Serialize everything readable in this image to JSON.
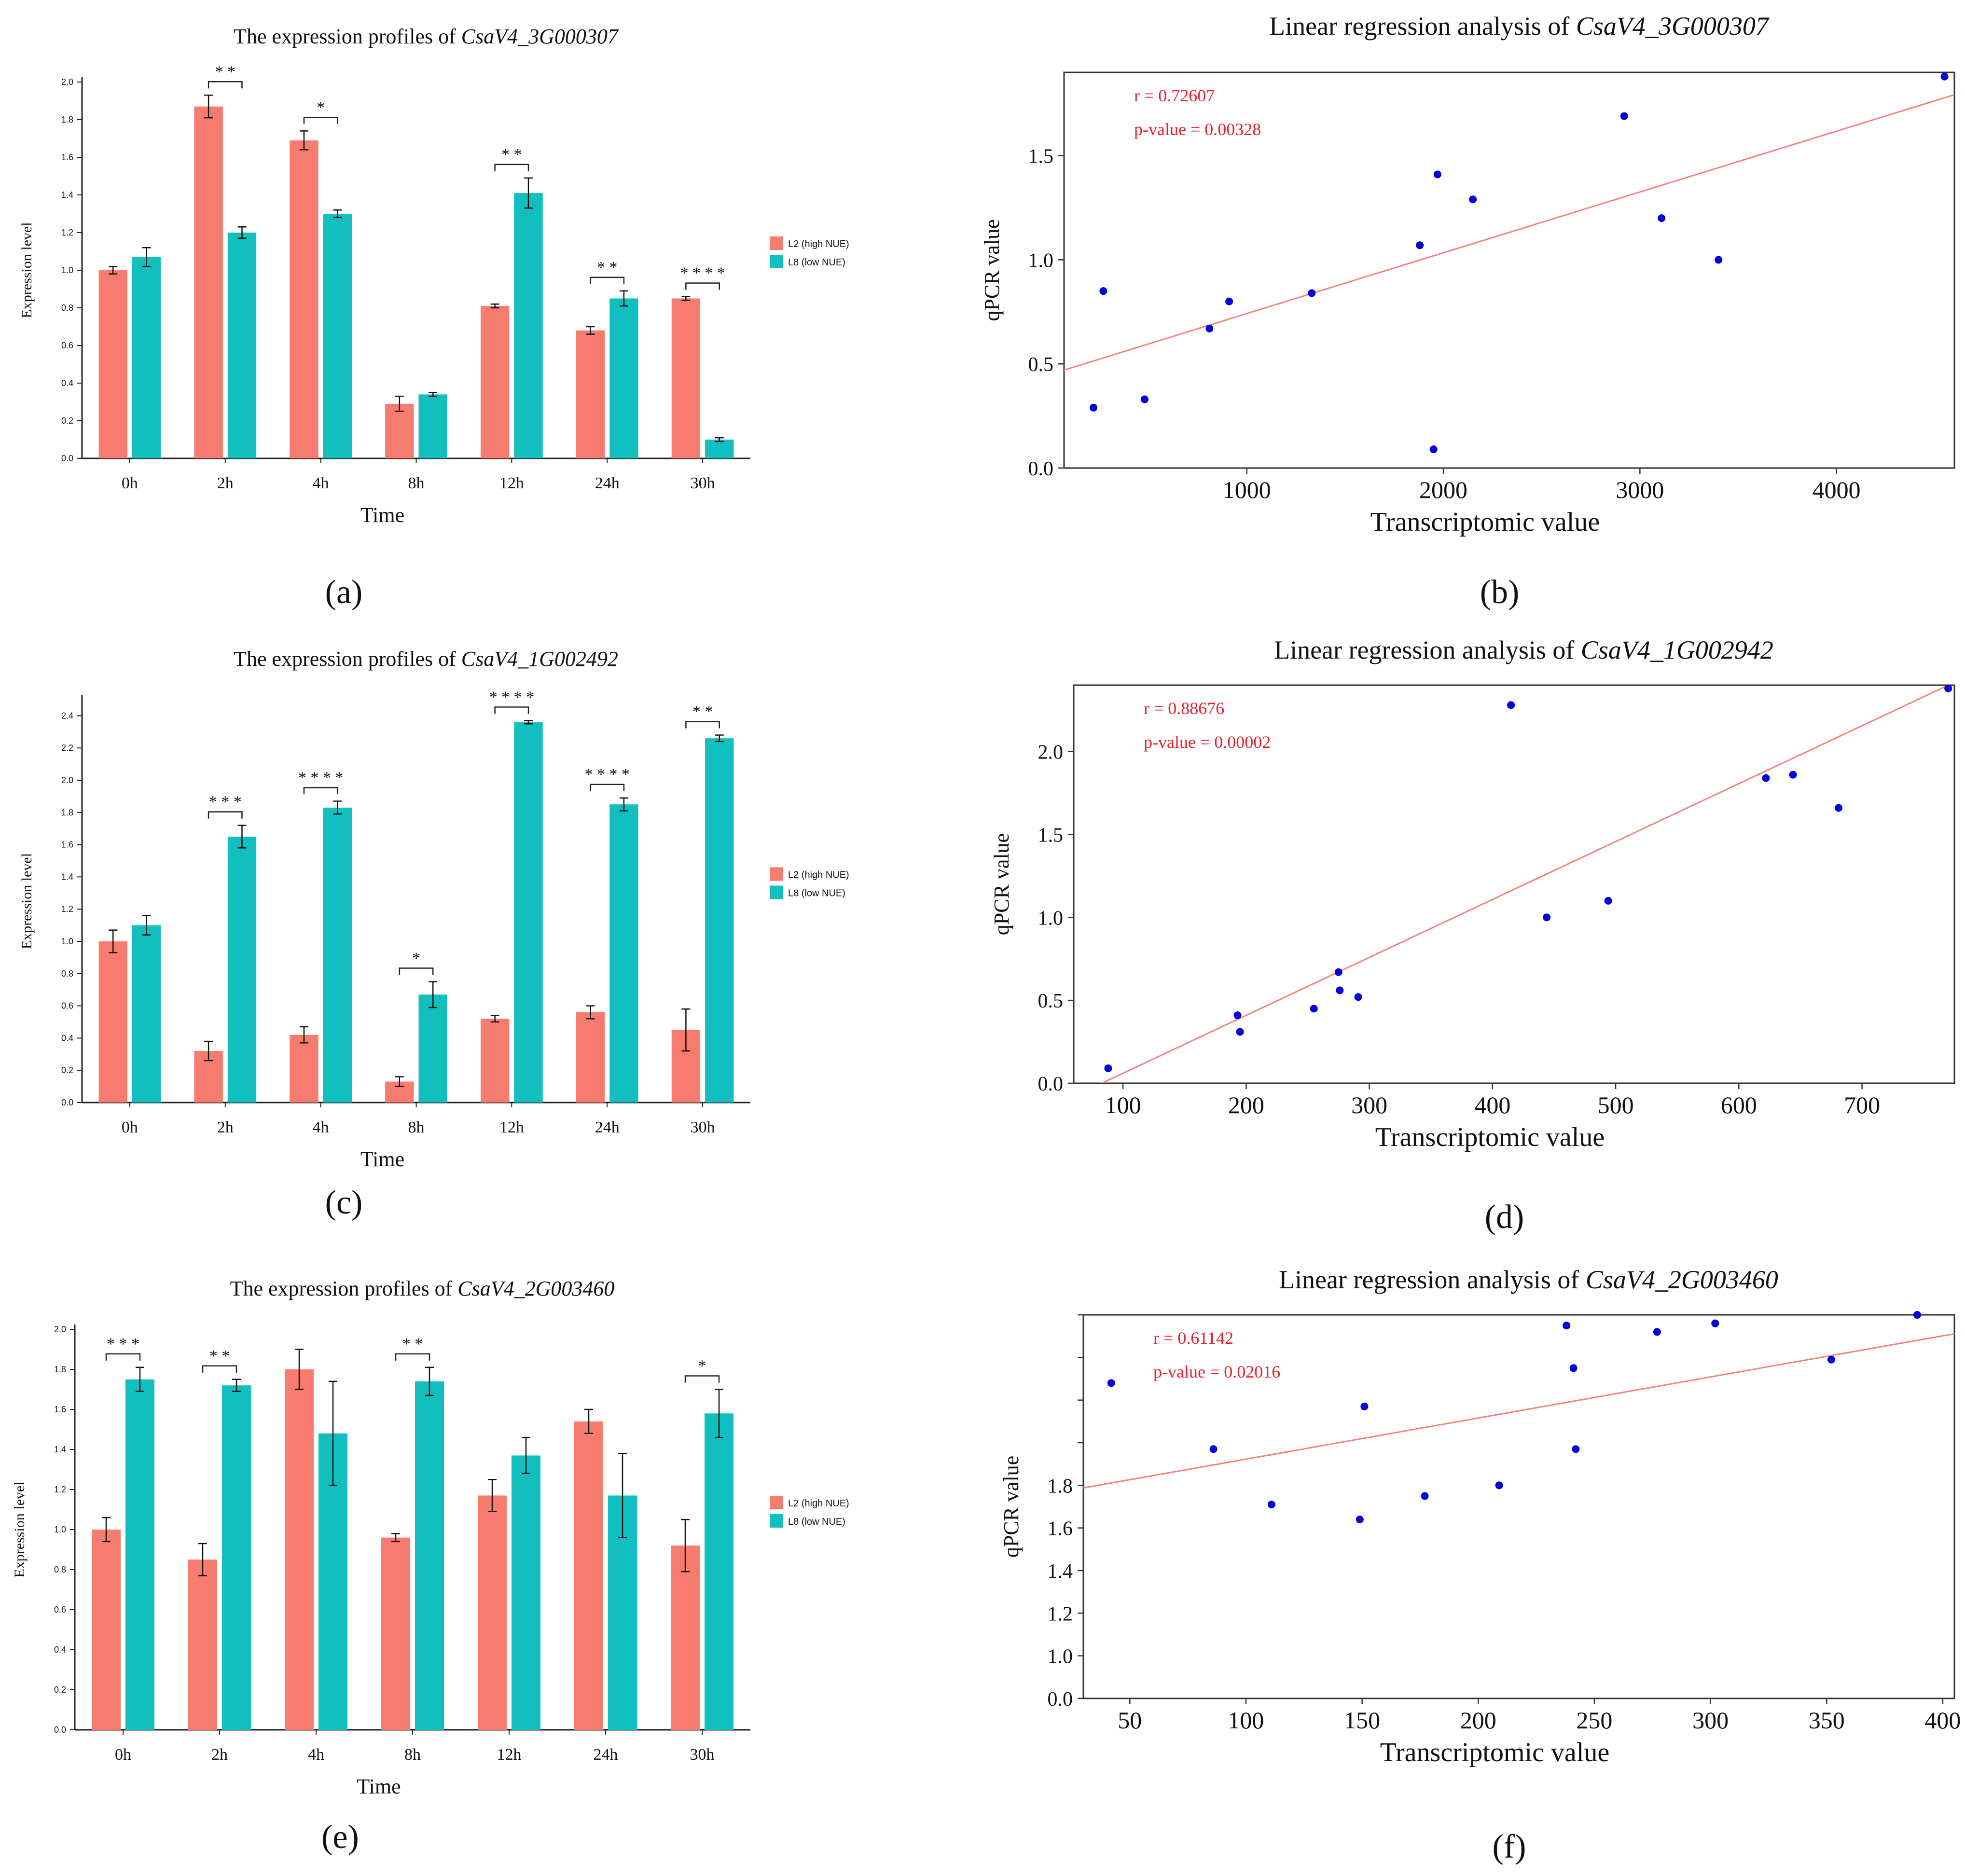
{
  "colors": {
    "l2": "#F87B6F",
    "l8": "#12BFBF",
    "point": "#0000DD",
    "fit": "#F4837B",
    "stat": "#E8202A",
    "axis": "#222222"
  },
  "chart_data": [
    {
      "type": "bar",
      "panel_label": "(a)",
      "title_prefix": "The expression profiles of ",
      "title_gene": "CsaV4_3G000307",
      "xlabel": "Time",
      "ylabel": "Expression level",
      "categories": [
        "0h",
        "2h",
        "4h",
        "8h",
        "12h",
        "24h",
        "30h"
      ],
      "ylim": [
        0,
        2.0
      ],
      "yticks": [
        "0.0",
        "0.2",
        "0.4",
        "0.6",
        "0.8",
        "1.0",
        "1.2",
        "1.4",
        "1.6",
        "1.8",
        "2.0"
      ],
      "series": [
        {
          "name": "L2 (high NUE)",
          "values": [
            1.0,
            1.87,
            1.69,
            0.29,
            0.81,
            0.68,
            0.85
          ],
          "errors": [
            0.02,
            0.06,
            0.05,
            0.04,
            0.01,
            0.02,
            0.01
          ]
        },
        {
          "name": "L8 (low NUE)",
          "values": [
            1.07,
            1.2,
            1.3,
            0.34,
            1.41,
            0.85,
            0.1
          ],
          "errors": [
            0.05,
            0.03,
            0.02,
            0.01,
            0.08,
            0.04,
            0.01
          ]
        }
      ],
      "significance": [
        "",
        "* *",
        "*",
        "",
        "* *",
        "* *",
        "* * * *"
      ]
    },
    {
      "type": "scatter",
      "panel_label": "(b)",
      "title_prefix": "Linear regression analysis of ",
      "title_gene": "CsaV4_3G000307",
      "xlabel": "Transcriptomic value",
      "ylabel": "qPCR value",
      "xlim": [
        70,
        4600
      ],
      "ylim": [
        0,
        1.9
      ],
      "xticks": [
        1000,
        2000,
        3000,
        4000
      ],
      "yticks": [
        0.0,
        0.5,
        1.0,
        1.5
      ],
      "ytick_labels": [
        "0.0",
        "0.5",
        "1.0",
        "1.5"
      ],
      "r_text": "r = 0.72607",
      "p_text": "p-value = 0.00328",
      "points": [
        [
          220,
          0.29
        ],
        [
          270,
          0.85
        ],
        [
          480,
          0.33
        ],
        [
          810,
          0.67
        ],
        [
          910,
          0.8
        ],
        [
          1330,
          0.84
        ],
        [
          1880,
          1.07
        ],
        [
          1950,
          0.09
        ],
        [
          1970,
          1.41
        ],
        [
          2150,
          1.29
        ],
        [
          2920,
          1.69
        ],
        [
          3110,
          1.2
        ],
        [
          3400,
          1.0
        ],
        [
          4550,
          1.88
        ]
      ],
      "fit": {
        "slope": 0.0002919,
        "intercept": 0.45
      }
    },
    {
      "type": "bar",
      "panel_label": "(c)",
      "title_prefix": "The expression profiles of ",
      "title_gene": "CsaV4_1G002492",
      "xlabel": "Time",
      "ylabel": "Expression level",
      "categories": [
        "0h",
        "2h",
        "4h",
        "8h",
        "12h",
        "24h",
        "30h"
      ],
      "ylim": [
        0,
        2.5
      ],
      "yticks": [
        "0.0",
        "0.2",
        "0.4",
        "0.6",
        "0.8",
        "1.0",
        "1.2",
        "1.4",
        "1.6",
        "1.8",
        "2.0",
        "2.2",
        "2.4"
      ],
      "series": [
        {
          "name": "L2 (high NUE)",
          "values": [
            1.0,
            0.32,
            0.42,
            0.13,
            0.52,
            0.56,
            0.45
          ],
          "errors": [
            0.07,
            0.06,
            0.05,
            0.03,
            0.02,
            0.04,
            0.13
          ]
        },
        {
          "name": "L8 (low NUE)",
          "values": [
            1.1,
            1.65,
            1.83,
            0.67,
            2.36,
            1.85,
            2.26
          ],
          "errors": [
            0.06,
            0.07,
            0.04,
            0.08,
            0.01,
            0.04,
            0.02
          ]
        }
      ],
      "significance": [
        "",
        "* * *",
        "* * * *",
        "*",
        "* * * *",
        "* * * *",
        "* *"
      ]
    },
    {
      "type": "scatter",
      "panel_label": "(d)",
      "title_prefix": "Linear regression analysis of ",
      "title_gene": "CsaV4_1G002942",
      "xlabel": "Transcriptomic value",
      "ylabel": "qPCR value",
      "xlim": [
        60,
        775
      ],
      "ylim": [
        0,
        2.4
      ],
      "xticks": [
        100,
        200,
        300,
        400,
        500,
        600,
        700
      ],
      "yticks": [
        0.0,
        0.5,
        1.0,
        1.5,
        2.0
      ],
      "ytick_labels": [
        "0.0",
        "0.5",
        "1.0",
        "1.5",
        "2.0"
      ],
      "r_text": "r = 0.88676",
      "p_text": "p-value = 0.00002",
      "points": [
        [
          88,
          0.09
        ],
        [
          193,
          0.41
        ],
        [
          195,
          0.31
        ],
        [
          255,
          0.45
        ],
        [
          275,
          0.67
        ],
        [
          276,
          0.56
        ],
        [
          291,
          0.52
        ],
        [
          415,
          2.28
        ],
        [
          444,
          1.0
        ],
        [
          494,
          1.1
        ],
        [
          622,
          1.84
        ],
        [
          644,
          1.86
        ],
        [
          681,
          1.66
        ],
        [
          770,
          2.38
        ]
      ],
      "fit": {
        "slope": 0.003492,
        "intercept": -0.289
      }
    },
    {
      "type": "bar",
      "panel_label": "(e)",
      "title_prefix": "The expression profiles of ",
      "title_gene": "CsaV4_2G003460",
      "xlabel": "Time",
      "ylabel": "Expression level",
      "categories": [
        "0h",
        "2h",
        "4h",
        "8h",
        "12h",
        "24h",
        "30h"
      ],
      "ylim": [
        0,
        2.0
      ],
      "yticks": [
        "0.0",
        "0.2",
        "0.4",
        "0.6",
        "0.8",
        "1.0",
        "1.2",
        "1.4",
        "1.6",
        "1.8",
        "2.0"
      ],
      "series": [
        {
          "name": "L2 (high NUE)",
          "values": [
            1.0,
            0.85,
            1.8,
            0.96,
            1.17,
            1.54,
            0.92
          ],
          "errors": [
            0.06,
            0.08,
            0.1,
            0.02,
            0.08,
            0.06,
            0.13
          ]
        },
        {
          "name": "L8 (low NUE)",
          "values": [
            1.75,
            1.72,
            1.48,
            1.74,
            1.37,
            1.17,
            1.58
          ],
          "errors": [
            0.06,
            0.03,
            0.26,
            0.07,
            0.09,
            0.21,
            0.12
          ]
        }
      ],
      "significance": [
        "* * *",
        "* *",
        "",
        "* *",
        "",
        "",
        "*"
      ]
    },
    {
      "type": "scatter",
      "panel_label": "(f)",
      "title_prefix": "Linear regression analysis of ",
      "title_gene": "CsaV4_2G003460",
      "xlabel": "Transcriptomic value",
      "ylabel": "qPCR value",
      "xlim": [
        30,
        405
      ],
      "ylim": [
        0,
        1.8
      ],
      "xticks": [
        50,
        100,
        150,
        200,
        250,
        300,
        350,
        400
      ],
      "yticks": [
        0.0,
        0.2,
        0.4,
        0.6,
        0.8,
        1.0,
        1.2,
        1.4,
        1.6,
        1.8
      ],
      "ytick_labels": [
        "0.0",
        "1.0",
        "1.2",
        "1.4",
        "1.6",
        "1.8"
      ],
      "ytick_label_values": [
        0.0,
        0.2,
        0.4,
        0.6,
        0.8,
        1.0
      ],
      "r_text": "r = 0.61142",
      "p_text": "p-value = 0.02016",
      "points": [
        [
          42,
          1.48
        ],
        [
          86,
          1.17
        ],
        [
          111,
          0.91
        ],
        [
          149,
          0.84
        ],
        [
          151,
          1.37
        ],
        [
          177,
          0.95
        ],
        [
          209,
          1.0
        ],
        [
          238,
          1.75
        ],
        [
          241,
          1.55
        ],
        [
          242,
          1.17
        ],
        [
          277,
          1.72
        ],
        [
          302,
          1.76
        ],
        [
          352,
          1.59
        ],
        [
          389,
          1.8
        ]
      ],
      "fit": {
        "slope": 0.001929,
        "intercept": 0.93
      }
    }
  ]
}
